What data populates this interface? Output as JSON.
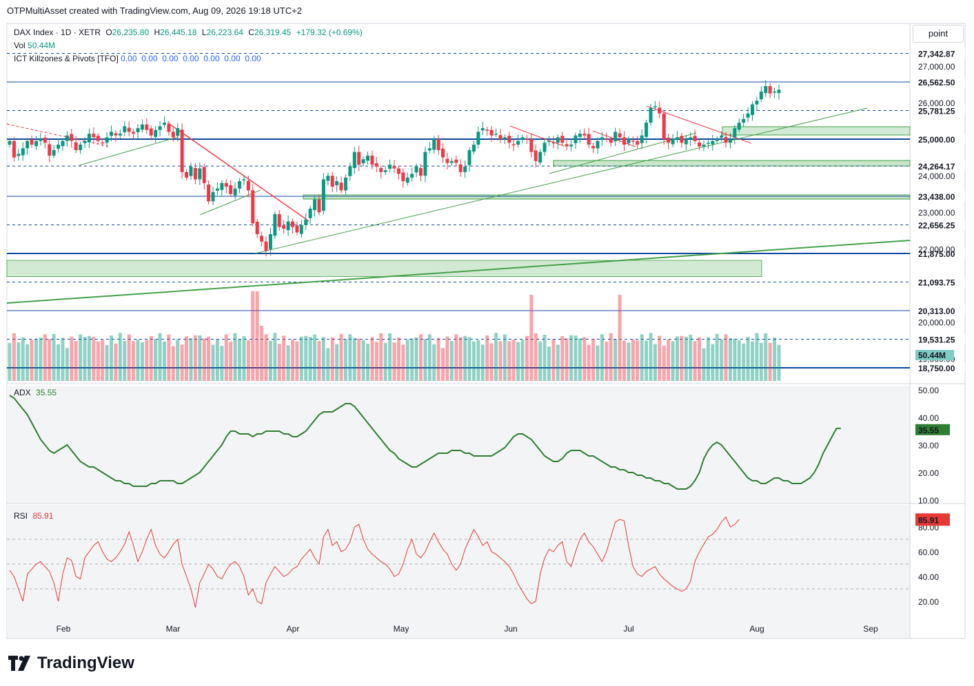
{
  "header": {
    "text": "OTPMultiAsset created with TradingView.com, Aug 09, 2026 19:18 UTC+2"
  },
  "legend": {
    "symbol": "DAX Index · 1D · XETR",
    "o_label": "O",
    "o": "26,235.80",
    "h_label": "H",
    "h": "26,445.18",
    "l_label": "L",
    "l": "26,223.64",
    "c_label": "C",
    "c": "26,319.45",
    "change": "+179.32 (+0.69%)",
    "vol_label": "Vol",
    "vol": "50.44M",
    "ict_label": "ICT Killzones & Pivots [TFO]",
    "ict_values": "0.00  0.00  0.00  0.00  0.00  0.00  0.00"
  },
  "scale_mode": "point",
  "price_axis": {
    "ticks": [
      "27,000.00",
      "26,000.00",
      "24,000.00",
      "23,000.00",
      "22,000.00",
      "20,000.00",
      "19,000.00"
    ],
    "levels": [
      {
        "label": "27,342.87",
        "style": "dashed"
      },
      {
        "label": "26,562.50",
        "style": "solid"
      },
      {
        "label": "25,781.25",
        "style": "dashed"
      },
      {
        "label": "25,000.00",
        "style": "solid-bold"
      },
      {
        "label": "24,264.17",
        "style": "dashed"
      },
      {
        "label": "23,438.00",
        "style": "solid"
      },
      {
        "label": "22,656.25",
        "style": "dashed"
      },
      {
        "label": "21,875.00",
        "style": "solid-bold"
      },
      {
        "label": "21,093.75",
        "style": "dashed"
      },
      {
        "label": "20,313.00",
        "style": "solid"
      },
      {
        "label": "19,531.25",
        "style": "dashed"
      },
      {
        "label": "18,750.00",
        "style": "solid-bold"
      }
    ],
    "volume_tag": "50.44M"
  },
  "adx": {
    "label": "ADX",
    "value": "35.55",
    "ticks": [
      "50.00",
      "40.00",
      "30.00",
      "20.00",
      "10.00"
    ],
    "tag": "35.55"
  },
  "rsi": {
    "label": "RSI",
    "value": "85.91",
    "ticks": [
      "80.00",
      "60.00",
      "40.00",
      "20.00"
    ],
    "tag": "85.91"
  },
  "time_axis": [
    "Feb",
    "Mar",
    "Apr",
    "May",
    "Jun",
    "Jul",
    "Aug",
    "Sep"
  ],
  "brand": "TradingView",
  "colors": {
    "up": "#089981",
    "down": "#f23645",
    "adx": "#2e7d32",
    "rsi": "#e53935",
    "level": "#0d47a1",
    "zone": "#a5d6a7",
    "trend_green": "#43a047",
    "trend_red": "#f23645"
  },
  "chart_data": {
    "type": "candlestick",
    "symbol": "DAX Index",
    "ylim": [
      18700,
      27600
    ],
    "closes": [
      24950,
      24500,
      24600,
      24750,
      24950,
      24850,
      24950,
      25000,
      24900,
      24550,
      24700,
      24850,
      24950,
      25100,
      24950,
      24700,
      24850,
      24950,
      25150,
      25050,
      24950,
      24900,
      25050,
      25200,
      25100,
      25150,
      25350,
      25200,
      25150,
      25300,
      25400,
      25250,
      25100,
      25250,
      25350,
      25450,
      25200,
      25050,
      25300,
      24100,
      23950,
      24250,
      23900,
      24200,
      23800,
      23300,
      23550,
      23650,
      23800,
      23700,
      23500,
      23650,
      23850,
      23900,
      23600,
      22700,
      22400,
      22200,
      21950,
      22400,
      22950,
      22600,
      22550,
      22750,
      22600,
      22450,
      22650,
      22800,
      23100,
      23350,
      23000,
      23900,
      24000,
      23700,
      23850,
      23600,
      23950,
      24250,
      24650,
      24300,
      24450,
      24550,
      24300,
      24250,
      24100,
      24150,
      24300,
      24200,
      24050,
      23850,
      23950,
      24050,
      24250,
      24000,
      24650,
      24750,
      25000,
      24700,
      24500,
      24350,
      24400,
      24350,
      24100,
      24250,
      24700,
      24850,
      25200,
      25300,
      25250,
      25100,
      25150,
      25000,
      25050,
      24900,
      24850,
      24950,
      25050,
      25000,
      24650,
      24400,
      24650,
      24900,
      24950,
      24900,
      25050,
      24900,
      24800,
      24850,
      25100,
      25150,
      25100,
      24850,
      24750,
      24950,
      25050,
      25000,
      24900,
      25200,
      25050,
      24850,
      25000,
      24950,
      24850,
      25100,
      25450,
      25850,
      25900,
      25700,
      25000,
      24900,
      25000,
      25050,
      24900,
      25000,
      25050,
      24950,
      24800,
      24850,
      24900,
      24950,
      25000,
      25100,
      24900,
      25000,
      25300,
      25450,
      25550,
      25700,
      25950,
      26050,
      26300,
      26450,
      26250,
      26300,
      26350
    ],
    "adx": [
      48,
      47,
      45,
      43,
      41,
      38,
      35,
      32,
      30,
      28,
      27,
      28,
      29,
      30,
      28,
      26,
      24,
      23,
      22,
      22,
      21,
      20,
      19,
      18,
      17,
      17,
      16,
      16,
      15,
      15,
      15,
      15,
      16,
      16,
      17,
      17,
      17,
      17,
      16,
      16,
      17,
      18,
      19,
      20,
      22,
      24,
      26,
      28,
      30,
      33,
      35,
      35,
      34,
      34,
      34,
      33,
      34,
      34,
      35,
      35,
      35,
      35,
      34,
      34,
      33,
      33,
      34,
      35,
      37,
      39,
      41,
      42,
      42,
      42,
      43,
      44,
      45,
      45,
      44,
      42,
      40,
      38,
      36,
      34,
      32,
      30,
      28,
      27,
      25,
      24,
      23,
      22,
      22,
      23,
      24,
      25,
      26,
      27,
      27,
      27,
      28,
      28,
      28,
      27,
      27,
      26,
      26,
      26,
      26,
      26,
      27,
      28,
      29,
      31,
      33,
      34,
      34,
      33,
      32,
      30,
      28,
      26,
      25,
      24,
      24,
      25,
      27,
      28,
      28,
      28,
      27,
      26,
      26,
      25,
      24,
      23,
      22,
      22,
      21,
      21,
      20,
      20,
      19,
      19,
      18,
      18,
      17,
      17,
      16,
      16,
      15,
      14,
      14,
      14,
      15,
      17,
      20,
      25,
      28,
      30,
      31,
      30,
      28,
      26,
      24,
      22,
      20,
      18,
      17,
      17,
      16,
      16,
      17,
      18,
      18,
      17,
      17,
      16,
      16,
      16,
      17,
      18,
      20,
      23,
      27,
      30,
      33,
      36,
      36
    ],
    "rsi": [
      45,
      40,
      30,
      20,
      42,
      46,
      50,
      52,
      48,
      44,
      35,
      20,
      42,
      55,
      53,
      40,
      38,
      55,
      60,
      65,
      68,
      60,
      54,
      52,
      55,
      60,
      66,
      76,
      65,
      52,
      60,
      70,
      78,
      65,
      58,
      55,
      60,
      66,
      70,
      50,
      40,
      30,
      15,
      35,
      42,
      50,
      46,
      40,
      38,
      45,
      50,
      52,
      48,
      40,
      25,
      30,
      20,
      18,
      35,
      42,
      48,
      44,
      40,
      42,
      46,
      48,
      54,
      58,
      62,
      55,
      50,
      72,
      78,
      65,
      68,
      60,
      62,
      68,
      80,
      82,
      70,
      62,
      58,
      55,
      52,
      50,
      46,
      40,
      42,
      50,
      62,
      70,
      58,
      55,
      60,
      68,
      75,
      68,
      62,
      58,
      50,
      45,
      50,
      62,
      70,
      78,
      72,
      65,
      68,
      60,
      58,
      55,
      52,
      48,
      42,
      34,
      28,
      22,
      18,
      20,
      42,
      55,
      62,
      60,
      65,
      68,
      52,
      48,
      60,
      70,
      75,
      68,
      64,
      58,
      52,
      60,
      72,
      84,
      86,
      85,
      65,
      48,
      42,
      40,
      44,
      46,
      48,
      42,
      38,
      35,
      32,
      30,
      28,
      30,
      36,
      52,
      60,
      66,
      72,
      74,
      78,
      84,
      88,
      80,
      82,
      86
    ]
  }
}
